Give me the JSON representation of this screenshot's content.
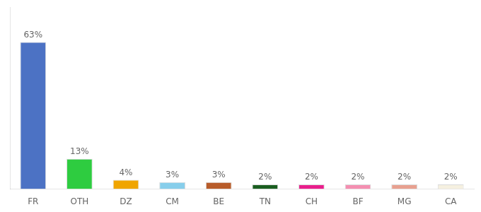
{
  "chart_data": {
    "type": "bar",
    "categories": [
      "FR",
      "OTH",
      "DZ",
      "CM",
      "BE",
      "TN",
      "CH",
      "BF",
      "MG",
      "CA"
    ],
    "values": [
      63,
      13,
      4,
      3,
      3,
      2,
      2,
      2,
      2,
      2
    ],
    "value_labels": [
      "63%",
      "13%",
      "4%",
      "3%",
      "3%",
      "2%",
      "2%",
      "2%",
      "2%",
      "2%"
    ],
    "data_labels": true,
    "colors": [
      "#4c72c4",
      "#2ecc40",
      "#f0a500",
      "#87ceeb",
      "#b85c2a",
      "#1a5e20",
      "#e91e8c",
      "#f48fb1",
      "#e8a090",
      "#f5f0e0"
    ],
    "ylim": [
      0,
      78
    ],
    "grid": false,
    "tick_labels": "x"
  }
}
